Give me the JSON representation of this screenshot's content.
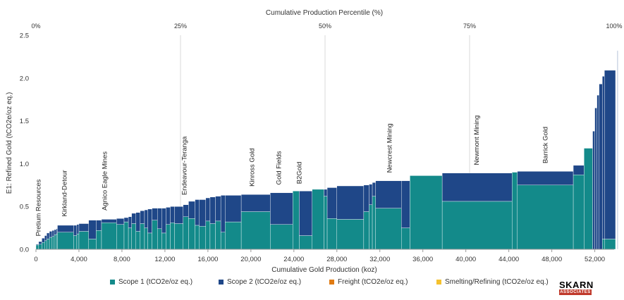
{
  "chart_data": {
    "type": "bar",
    "subtype": "cost-curve",
    "top_axis_label": "Cumulative Production Percentile (%)",
    "top_ticks": [
      "0%",
      "25%",
      "50%",
      "75%",
      "100%"
    ],
    "xlabel": "Cumulative Gold Production (koz)",
    "ylabel": "E1: Refined Gold (tCO2e/oz eq.)",
    "xlim": [
      0,
      53800
    ],
    "ylim": [
      0,
      2.5
    ],
    "x_ticks": [
      0,
      4000,
      8000,
      12000,
      16000,
      20000,
      24000,
      28000,
      32000,
      36000,
      40000,
      44000,
      48000,
      52000
    ],
    "x_tick_labels": [
      "0",
      "4,000",
      "8,000",
      "12,000",
      "16,000",
      "20,000",
      "24,000",
      "28,000",
      "32,000",
      "36,000",
      "40,000",
      "44,000",
      "48,000",
      "52,000"
    ],
    "y_ticks": [
      0,
      0.5,
      1.0,
      1.5,
      2.0,
      2.5
    ],
    "y_tick_labels": [
      "0.0",
      "0.5",
      "1.0",
      "1.5",
      "2.0",
      "2.5"
    ],
    "series_names": [
      "Scope 1 (tCO2e/oz eq.)",
      "Scope 2 (tCO2e/oz eq.)",
      "Freight (tCO2e/oz eq.)",
      "Smelting/Refining (tCO2e/oz eq.)"
    ],
    "colors": {
      "scope1": "#138a8a",
      "scope2": "#1f4788",
      "freight": "#e07b12",
      "smelting": "#f5c12e"
    },
    "bars": [
      {
        "x0": 0,
        "x1": 250,
        "s1": 0.05,
        "s2": 0.01
      },
      {
        "x0": 250,
        "x1": 550,
        "s1": 0.06,
        "s2": 0.03
      },
      {
        "x0": 550,
        "x1": 800,
        "s1": 0.08,
        "s2": 0.05
      },
      {
        "x0": 800,
        "x1": 1000,
        "s1": 0.1,
        "s2": 0.06
      },
      {
        "x0": 1000,
        "x1": 1250,
        "s1": 0.12,
        "s2": 0.07
      },
      {
        "x0": 1250,
        "x1": 1500,
        "s1": 0.14,
        "s2": 0.07
      },
      {
        "x0": 1500,
        "x1": 1700,
        "s1": 0.15,
        "s2": 0.07
      },
      {
        "x0": 1700,
        "x1": 1900,
        "s1": 0.17,
        "s2": 0.06
      },
      {
        "x0": 1900,
        "x1": 2000,
        "s1": 0.18,
        "s2": 0.06
      },
      {
        "x0": 2000,
        "x1": 3500,
        "s1": 0.2,
        "s2": 0.08
      },
      {
        "x0": 3500,
        "x1": 3800,
        "s1": 0.16,
        "s2": 0.12
      },
      {
        "x0": 3800,
        "x1": 4000,
        "s1": 0.18,
        "s2": 0.11
      },
      {
        "x0": 4000,
        "x1": 4900,
        "s1": 0.21,
        "s2": 0.09
      },
      {
        "x0": 4900,
        "x1": 5600,
        "s1": 0.12,
        "s2": 0.22
      },
      {
        "x0": 5600,
        "x1": 6100,
        "s1": 0.22,
        "s2": 0.12
      },
      {
        "x0": 6100,
        "x1": 7500,
        "s1": 0.31,
        "s2": 0.04
      },
      {
        "x0": 7500,
        "x1": 8200,
        "s1": 0.29,
        "s2": 0.07
      },
      {
        "x0": 8200,
        "x1": 8600,
        "s1": 0.32,
        "s2": 0.05
      },
      {
        "x0": 8600,
        "x1": 8900,
        "s1": 0.25,
        "s2": 0.13
      },
      {
        "x0": 8900,
        "x1": 9300,
        "s1": 0.3,
        "s2": 0.12
      },
      {
        "x0": 9300,
        "x1": 9700,
        "s1": 0.21,
        "s2": 0.22
      },
      {
        "x0": 9700,
        "x1": 10100,
        "s1": 0.3,
        "s2": 0.15
      },
      {
        "x0": 10100,
        "x1": 10400,
        "s1": 0.25,
        "s2": 0.21
      },
      {
        "x0": 10400,
        "x1": 10800,
        "s1": 0.19,
        "s2": 0.28
      },
      {
        "x0": 10800,
        "x1": 11300,
        "s1": 0.34,
        "s2": 0.14
      },
      {
        "x0": 11300,
        "x1": 11700,
        "s1": 0.24,
        "s2": 0.24
      },
      {
        "x0": 11700,
        "x1": 12100,
        "s1": 0.19,
        "s2": 0.29
      },
      {
        "x0": 12100,
        "x1": 12500,
        "s1": 0.29,
        "s2": 0.2
      },
      {
        "x0": 12500,
        "x1": 12900,
        "s1": 0.31,
        "s2": 0.19
      },
      {
        "x0": 12900,
        "x1": 13700,
        "s1": 0.3,
        "s2": 0.2
      },
      {
        "x0": 13700,
        "x1": 14200,
        "s1": 0.38,
        "s2": 0.14
      },
      {
        "x0": 14200,
        "x1": 14800,
        "s1": 0.36,
        "s2": 0.2
      },
      {
        "x0": 14800,
        "x1": 15200,
        "s1": 0.28,
        "s2": 0.3
      },
      {
        "x0": 15200,
        "x1": 15800,
        "s1": 0.27,
        "s2": 0.31
      },
      {
        "x0": 15800,
        "x1": 16200,
        "s1": 0.33,
        "s2": 0.27
      },
      {
        "x0": 16200,
        "x1": 16700,
        "s1": 0.3,
        "s2": 0.31
      },
      {
        "x0": 16700,
        "x1": 17200,
        "s1": 0.33,
        "s2": 0.29
      },
      {
        "x0": 17200,
        "x1": 17600,
        "s1": 0.2,
        "s2": 0.43
      },
      {
        "x0": 17600,
        "x1": 19100,
        "s1": 0.32,
        "s2": 0.31
      },
      {
        "x0": 19100,
        "x1": 21800,
        "s1": 0.44,
        "s2": 0.2
      },
      {
        "x0": 21800,
        "x1": 23900,
        "s1": 0.29,
        "s2": 0.37
      },
      {
        "x0": 23900,
        "x1": 24500,
        "s1": 0.68,
        "s2": 0.0
      },
      {
        "x0": 24500,
        "x1": 25700,
        "s1": 0.16,
        "s2": 0.52
      },
      {
        "x0": 25700,
        "x1": 26800,
        "s1": 0.7,
        "s2": 0.0
      },
      {
        "x0": 26800,
        "x1": 27100,
        "s1": 0.62,
        "s2": 0.08
      },
      {
        "x0": 27100,
        "x1": 28000,
        "s1": 0.36,
        "s2": 0.36
      },
      {
        "x0": 28000,
        "x1": 30500,
        "s1": 0.35,
        "s2": 0.39
      },
      {
        "x0": 30500,
        "x1": 31000,
        "s1": 0.44,
        "s2": 0.31
      },
      {
        "x0": 31000,
        "x1": 31300,
        "s1": 0.52,
        "s2": 0.24
      },
      {
        "x0": 31300,
        "x1": 31600,
        "s1": 0.62,
        "s2": 0.16
      },
      {
        "x0": 31600,
        "x1": 34000,
        "s1": 0.48,
        "s2": 0.32
      },
      {
        "x0": 34000,
        "x1": 34800,
        "s1": 0.25,
        "s2": 0.55
      },
      {
        "x0": 34800,
        "x1": 37800,
        "s1": 0.86,
        "s2": 0.0
      },
      {
        "x0": 37800,
        "x1": 44300,
        "s1": 0.56,
        "s2": 0.33
      },
      {
        "x0": 44300,
        "x1": 44800,
        "s1": 0.9,
        "s2": 0.0
      },
      {
        "x0": 44800,
        "x1": 50000,
        "s1": 0.75,
        "s2": 0.16
      },
      {
        "x0": 50000,
        "x1": 51000,
        "s1": 0.87,
        "s2": 0.11
      },
      {
        "x0": 51000,
        "x1": 51800,
        "s1": 1.18,
        "s2": 0.0
      },
      {
        "x0": 51800,
        "x1": 52000,
        "s1": 0.0,
        "s2": 1.38
      },
      {
        "x0": 52000,
        "x1": 52200,
        "s1": 0.0,
        "s2": 1.65
      },
      {
        "x0": 52200,
        "x1": 52400,
        "s1": 0.0,
        "s2": 1.8
      },
      {
        "x0": 52400,
        "x1": 52700,
        "s1": 0.0,
        "s2": 1.93
      },
      {
        "x0": 52700,
        "x1": 52900,
        "s1": 0.12,
        "s2": 1.9
      },
      {
        "x0": 52900,
        "x1": 54100,
        "s1": 0.12,
        "s2": 1.97
      },
      {
        "x0": 54100,
        "x1": 54300,
        "s1": 0.0,
        "s2": 2.32
      }
    ],
    "annotations": [
      {
        "text": "Pretium Resources",
        "x": 420,
        "y": 0.12
      },
      {
        "text": "Kirkland-Detour",
        "x": 2850,
        "y": 0.35
      },
      {
        "text": "Agnico Eagle Mines",
        "x": 6600,
        "y": 0.42
      },
      {
        "text": "Endeavour-Teranga",
        "x": 14000,
        "y": 0.6
      },
      {
        "text": "Kinross Gold",
        "x": 20300,
        "y": 0.7
      },
      {
        "text": "Gold Fields",
        "x": 22800,
        "y": 0.72
      },
      {
        "text": "B2Gold",
        "x": 24700,
        "y": 0.73
      },
      {
        "text": "Newcrest Mining",
        "x": 33100,
        "y": 0.86
      },
      {
        "text": "Newmont Mining",
        "x": 41200,
        "y": 0.95
      },
      {
        "text": "Barrick Gold",
        "x": 47600,
        "y": 0.97
      }
    ]
  },
  "logo": {
    "top": "SKARN",
    "bottom": "ASSOCIATES"
  }
}
